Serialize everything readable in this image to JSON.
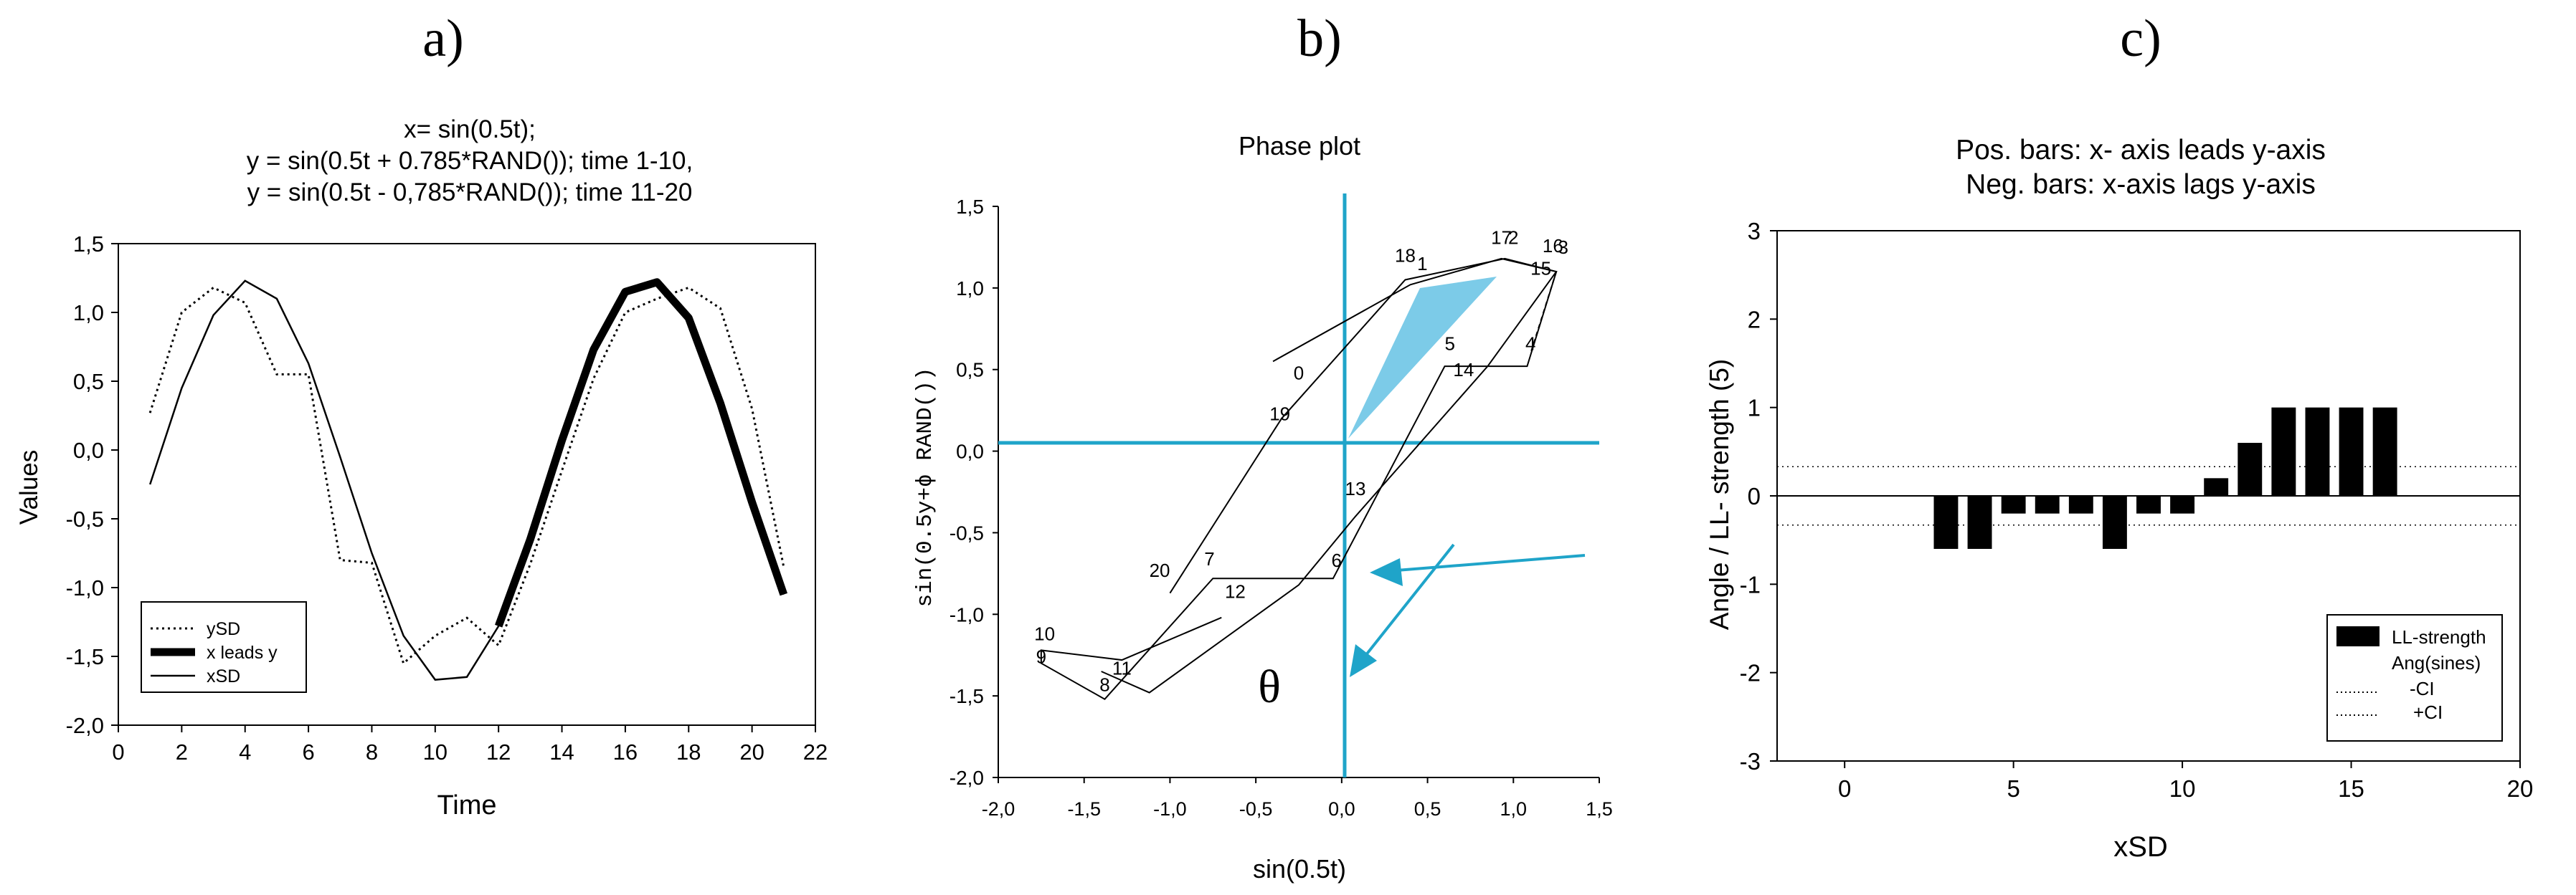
{
  "chart_data": [
    {
      "panel_label": "a)",
      "type": "line",
      "title_lines": [
        "x= sin(0.5t);",
        "y = sin(0.5t + 0.785*RAND()); time 1-10,",
        "y = sin(0.5t - 0,785*RAND()); time 11-20"
      ],
      "xlabel": "Time",
      "ylabel": "Values",
      "xlim": [
        0,
        22
      ],
      "ylim": [
        -2.0,
        1.5
      ],
      "xticks": [
        0,
        2,
        4,
        6,
        8,
        10,
        12,
        14,
        16,
        18,
        20,
        22
      ],
      "xtick_labels": [
        "0",
        "2",
        "4",
        "6",
        "8",
        "10",
        "12",
        "14",
        "16",
        "18",
        "20",
        "22"
      ],
      "yticks": [
        1.5,
        1.0,
        0.5,
        0.0,
        -0.5,
        -1.0,
        -1.5,
        -2.0
      ],
      "ytick_labels": [
        "1,5",
        "1,0",
        "0,5",
        "0,0",
        "-0,5",
        "-1,0",
        "-1,5",
        "-2,0"
      ],
      "legend": [
        "ySD",
        "x leads y",
        "xSD"
      ],
      "series": [
        {
          "name": "ySD",
          "style": "dotted",
          "points": [
            [
              1,
              0.27
            ],
            [
              2,
              1.0
            ],
            [
              3,
              1.18
            ],
            [
              4,
              1.07
            ],
            [
              5,
              0.55
            ],
            [
              6,
              0.55
            ],
            [
              7,
              -0.8
            ],
            [
              8,
              -0.82
            ],
            [
              9,
              -1.55
            ],
            [
              10,
              -1.35
            ],
            [
              11,
              -1.22
            ],
            [
              12,
              -1.42
            ],
            [
              13,
              -0.83
            ],
            [
              14,
              -0.15
            ],
            [
              15,
              0.52
            ],
            [
              16,
              1.0
            ],
            [
              17,
              1.1
            ],
            [
              18,
              1.18
            ],
            [
              19,
              1.03
            ],
            [
              20,
              0.3
            ],
            [
              21,
              -0.85
            ]
          ]
        },
        {
          "name": "x leads y",
          "style": "bold",
          "points": [
            [
              12,
              -1.28
            ],
            [
              13,
              -0.65
            ],
            [
              14,
              0.07
            ],
            [
              15,
              0.73
            ],
            [
              16,
              1.15
            ],
            [
              17,
              1.22
            ],
            [
              18,
              0.96
            ],
            [
              19,
              0.34
            ],
            [
              20,
              -0.38
            ],
            [
              21,
              -1.05
            ]
          ]
        },
        {
          "name": "xSD",
          "style": "solid",
          "points": [
            [
              1,
              -0.25
            ],
            [
              2,
              0.45
            ],
            [
              3,
              0.98
            ],
            [
              4,
              1.23
            ],
            [
              5,
              1.1
            ],
            [
              6,
              0.63
            ],
            [
              7,
              -0.05
            ],
            [
              8,
              -0.75
            ],
            [
              9,
              -1.35
            ],
            [
              10,
              -1.67
            ],
            [
              11,
              -1.65
            ],
            [
              12,
              -1.28
            ],
            [
              13,
              -0.65
            ],
            [
              14,
              0.07
            ],
            [
              15,
              0.73
            ],
            [
              16,
              1.15
            ],
            [
              17,
              1.22
            ],
            [
              18,
              0.96
            ],
            [
              19,
              0.34
            ],
            [
              20,
              -0.38
            ],
            [
              21,
              -1.05
            ]
          ]
        }
      ]
    },
    {
      "panel_label": "b)",
      "type": "scatter",
      "title": "Phase plot",
      "xlabel": "sin(0.5t)",
      "ylabel": "sin(0.5y+ϕ RAND())",
      "xlim": [
        -2.0,
        1.5
      ],
      "ylim": [
        -2.0,
        1.5
      ],
      "xticks": [
        -2.0,
        -1.5,
        -1.0,
        -0.5,
        0.0,
        0.5,
        1.0,
        1.5
      ],
      "xtick_labels": [
        "-2,0",
        "-1,5",
        "-1,0",
        "-0,5",
        "0,0",
        "0,5",
        "1,0",
        "1,5"
      ],
      "yticks": [
        1.5,
        1.0,
        0.5,
        0.0,
        -0.5,
        -1.0,
        -1.5,
        -2.0
      ],
      "ytick_labels": [
        "1,5",
        "1,0",
        "0,5",
        "0,0",
        "-0,5",
        "-1,0",
        "-1,5",
        "-2,0"
      ],
      "annotation_symbol": "θ",
      "trajectory": [
        [
          -0.4,
          0.55
        ],
        [
          0.4,
          1.02
        ],
        [
          0.93,
          1.18
        ],
        [
          1.25,
          1.1
        ],
        [
          1.08,
          0.52
        ],
        [
          0.6,
          0.52
        ],
        [
          -0.05,
          -0.78
        ],
        [
          -0.75,
          -0.78
        ],
        [
          -1.38,
          -1.52
        ],
        [
          -1.75,
          -1.3
        ],
        [
          -1.75,
          -1.22
        ],
        [
          -1.28,
          -1.28
        ],
        [
          -0.7,
          -1.02
        ]
      ],
      "trajectory2": [
        [
          -1.0,
          -0.87
        ],
        [
          -0.35,
          0.2
        ],
        [
          0.37,
          1.05
        ],
        [
          0.95,
          1.18
        ],
        [
          1.25,
          1.1
        ],
        [
          0.85,
          0.52
        ],
        [
          0.08,
          -0.4
        ],
        [
          -0.25,
          -0.82
        ],
        [
          -1.12,
          -1.48
        ],
        [
          -1.4,
          -1.35
        ]
      ],
      "point_labels": [
        {
          "text": "0",
          "x": -0.25,
          "y": 0.44
        },
        {
          "text": "1",
          "x": 0.47,
          "y": 1.11
        },
        {
          "text": "18",
          "x": 0.37,
          "y": 1.16
        },
        {
          "text": "17",
          "x": 0.93,
          "y": 1.27
        },
        {
          "text": "2",
          "x": 1.0,
          "y": 1.27
        },
        {
          "text": "15",
          "x": 1.16,
          "y": 1.08
        },
        {
          "text": "16",
          "x": 1.23,
          "y": 1.22
        },
        {
          "text": "3",
          "x": 1.29,
          "y": 1.21
        },
        {
          "text": "5",
          "x": 0.63,
          "y": 0.62
        },
        {
          "text": "4",
          "x": 1.1,
          "y": 0.62
        },
        {
          "text": "14",
          "x": 0.71,
          "y": 0.46
        },
        {
          "text": "19",
          "x": -0.36,
          "y": 0.19
        },
        {
          "text": "13",
          "x": 0.08,
          "y": -0.27
        },
        {
          "text": "6",
          "x": -0.03,
          "y": -0.71
        },
        {
          "text": "7",
          "x": -0.77,
          "y": -0.7
        },
        {
          "text": "20",
          "x": -1.06,
          "y": -0.77
        },
        {
          "text": "12",
          "x": -0.62,
          "y": -0.9
        },
        {
          "text": "10",
          "x": -1.73,
          "y": -1.16
        },
        {
          "text": "9",
          "x": -1.75,
          "y": -1.3
        },
        {
          "text": "11",
          "x": -1.28,
          "y": -1.37
        },
        {
          "text": "8",
          "x": -1.38,
          "y": -1.47
        }
      ]
    },
    {
      "panel_label": "c)",
      "type": "bar",
      "title_lines": [
        "Pos. bars: x- axis leads y-axis",
        "Neg. bars: x-axis lags y-axis"
      ],
      "xlabel": "xSD",
      "ylabel": "Angle / LL- strength (5)",
      "xlim": [
        -2,
        20
      ],
      "ylim": [
        -3,
        3
      ],
      "xticks": [
        0,
        5,
        10,
        15,
        20
      ],
      "xtick_labels": [
        "0",
        "5",
        "10",
        "15",
        "20"
      ],
      "yticks": [
        3,
        2,
        1,
        0,
        -1,
        -2,
        -3
      ],
      "ytick_labels": [
        "3",
        "2",
        "1",
        "0",
        "-1",
        "-2",
        "-3"
      ],
      "legend": [
        "LL-strength",
        "Ang(sines)",
        "-CI",
        "+CI"
      ],
      "categories": [
        3,
        4,
        5,
        6,
        7,
        8,
        9,
        10,
        11,
        12,
        13,
        14,
        15,
        16
      ],
      "values": [
        -0.6,
        -0.6,
        -0.2,
        -0.2,
        -0.2,
        -0.6,
        -0.2,
        -0.2,
        0.2,
        0.6,
        1.0,
        1.0,
        1.0,
        1.0
      ],
      "ci": [
        -0.33,
        0.33
      ]
    }
  ],
  "colors": {
    "accent": "#1fa4c9",
    "ink": "#000000",
    "grid": "#000000"
  }
}
